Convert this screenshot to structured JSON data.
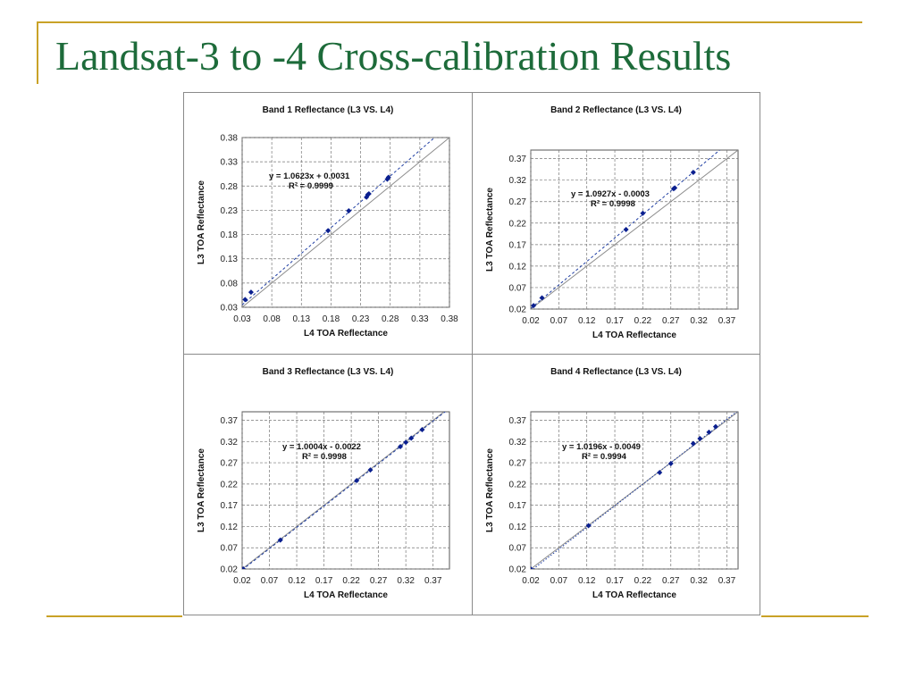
{
  "slide": {
    "title": "Landsat-3 to -4 Cross-calibration Results",
    "colors": {
      "title": "#1d6b3a",
      "rule": "#c9a227",
      "points": "#0a1f8f",
      "trend": "#1f3ea3",
      "reference": "#8c8c8c"
    }
  },
  "chart_data": [
    {
      "type": "scatter",
      "title": "Band 1 Reflectance (L3 VS. L4)",
      "xlabel": "L4 TOA Reflectance",
      "ylabel": "L3 TOA Reflectance",
      "xlim": [
        0.03,
        0.38
      ],
      "ylim": [
        0.03,
        0.38
      ],
      "xticks": [
        "0.03",
        "0.08",
        "0.13",
        "0.18",
        "0.23",
        "0.28",
        "0.33",
        "0.38"
      ],
      "yticks": [
        "0.03",
        "0.08",
        "0.13",
        "0.18",
        "0.23",
        "0.28",
        "0.33",
        "0.38"
      ],
      "points": [
        [
          0.035,
          0.046
        ],
        [
          0.045,
          0.061
        ],
        [
          0.175,
          0.188
        ],
        [
          0.21,
          0.229
        ],
        [
          0.24,
          0.257
        ],
        [
          0.242,
          0.262
        ],
        [
          0.244,
          0.264
        ],
        [
          0.275,
          0.294
        ],
        [
          0.277,
          0.298
        ]
      ],
      "trendline": {
        "slope": 1.0623,
        "intercept": 0.0031,
        "style": "dashed"
      },
      "equation": "y = 1.0623x + 0.0031",
      "r2": "R² = 0.9999",
      "reference_line": true,
      "grid": true
    },
    {
      "type": "scatter",
      "title": "Band 2 Reflectance (L3 VS. L4)",
      "xlabel": "L4 TOA Reflectance",
      "ylabel": "L3 TOA Reflectance",
      "xlim": [
        0.02,
        0.39
      ],
      "ylim": [
        0.02,
        0.39
      ],
      "xticks": [
        "0.02",
        "0.07",
        "0.12",
        "0.17",
        "0.22",
        "0.27",
        "0.32",
        "0.37"
      ],
      "yticks": [
        "0.02",
        "0.07",
        "0.12",
        "0.17",
        "0.22",
        "0.27",
        "0.32",
        "0.37"
      ],
      "points": [
        [
          0.025,
          0.028
        ],
        [
          0.04,
          0.046
        ],
        [
          0.19,
          0.205
        ],
        [
          0.22,
          0.243
        ],
        [
          0.275,
          0.3
        ],
        [
          0.277,
          0.302
        ],
        [
          0.31,
          0.338
        ]
      ],
      "trendline": {
        "slope": 1.0927,
        "intercept": -0.0003,
        "style": "dashed"
      },
      "equation": "y = 1.0927x - 0.0003",
      "r2": "R² = 0.9998",
      "reference_line": true,
      "grid": true
    },
    {
      "type": "scatter",
      "title": "Band 3 Reflectance (L3 VS. L4)",
      "xlabel": "L4 TOA Reflectance",
      "ylabel": "L3 TOA Reflectance",
      "xlim": [
        0.02,
        0.4
      ],
      "ylim": [
        0.02,
        0.39
      ],
      "xticks": [
        "0.02",
        "0.07",
        "0.12",
        "0.17",
        "0.22",
        "0.27",
        "0.32",
        "0.37"
      ],
      "yticks": [
        "0.02",
        "0.07",
        "0.12",
        "0.17",
        "0.22",
        "0.27",
        "0.32",
        "0.37"
      ],
      "points": [
        [
          0.022,
          0.02
        ],
        [
          0.09,
          0.088
        ],
        [
          0.23,
          0.228
        ],
        [
          0.255,
          0.253
        ],
        [
          0.31,
          0.308
        ],
        [
          0.32,
          0.318
        ],
        [
          0.33,
          0.328
        ],
        [
          0.35,
          0.348
        ]
      ],
      "trendline": {
        "slope": 1.0004,
        "intercept": -0.0022,
        "style": "dashed"
      },
      "equation": "y = 1.0004x - 0.0022",
      "r2": "R² = 0.9998",
      "reference_line": true,
      "grid": true
    },
    {
      "type": "scatter",
      "title": "Band 4 Reflectance (L3 VS. L4)",
      "xlabel": "L4 TOA Reflectance",
      "ylabel": "L3 TOA Reflectance",
      "xlim": [
        0.02,
        0.39
      ],
      "ylim": [
        0.02,
        0.39
      ],
      "xticks": [
        "0.02",
        "0.07",
        "0.12",
        "0.17",
        "0.22",
        "0.27",
        "0.32",
        "0.37"
      ],
      "yticks": [
        "0.02",
        "0.07",
        "0.12",
        "0.17",
        "0.22",
        "0.27",
        "0.32",
        "0.37"
      ],
      "points": [
        [
          0.02,
          0.02
        ],
        [
          0.123,
          0.122
        ],
        [
          0.25,
          0.247
        ],
        [
          0.27,
          0.268
        ],
        [
          0.31,
          0.315
        ],
        [
          0.322,
          0.327
        ],
        [
          0.338,
          0.342
        ],
        [
          0.35,
          0.355
        ]
      ],
      "trendline": {
        "slope": 1.0196,
        "intercept": -0.0049,
        "style": "dotted"
      },
      "equation": "y = 1.0196x - 0.0049",
      "r2": "R² = 0.9994",
      "reference_line": true,
      "grid": true
    }
  ]
}
